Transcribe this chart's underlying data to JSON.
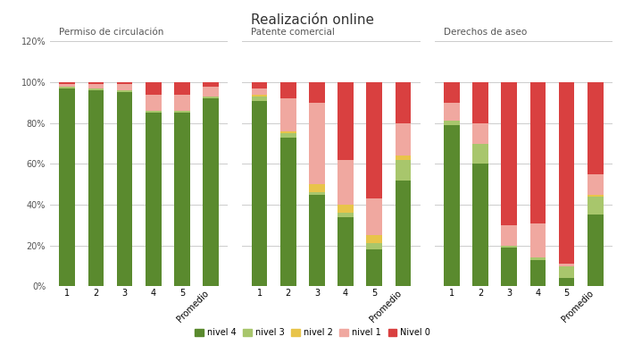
{
  "title": "Realización online",
  "groups": [
    "Permiso de circulación",
    "Patente comercial",
    "Derechos de aseo"
  ],
  "categories": [
    "1",
    "2",
    "3",
    "4",
    "5",
    "Promedio"
  ],
  "colors": {
    "nivel4": "#5a8a2e",
    "nivel3": "#a8c66c",
    "nivel2": "#e8c44a",
    "nivel1": "#f0a8a0",
    "nivel0": "#d94040"
  },
  "data": {
    "Permiso de circulación": {
      "nivel4": [
        97,
        96,
        95,
        85,
        85,
        92
      ],
      "nivel3": [
        1,
        1,
        1,
        1,
        1,
        1
      ],
      "nivel2": [
        0,
        0,
        0,
        0,
        0,
        0
      ],
      "nivel1": [
        1,
        2,
        3,
        8,
        8,
        5
      ],
      "nivel0": [
        1,
        1,
        1,
        6,
        6,
        2
      ]
    },
    "Patente comercial": {
      "nivel4": [
        91,
        73,
        45,
        34,
        18,
        52
      ],
      "nivel3": [
        2,
        2,
        1,
        2,
        3,
        10
      ],
      "nivel2": [
        1,
        1,
        4,
        4,
        4,
        2
      ],
      "nivel1": [
        3,
        16,
        40,
        22,
        18,
        16
      ],
      "nivel0": [
        3,
        8,
        10,
        38,
        57,
        20
      ]
    },
    "Derechos de aseo": {
      "nivel4": [
        79,
        60,
        19,
        13,
        4,
        35
      ],
      "nivel3": [
        2,
        10,
        1,
        1,
        6,
        9
      ],
      "nivel2": [
        0,
        0,
        0,
        0,
        0,
        1
      ],
      "nivel1": [
        9,
        10,
        10,
        17,
        1,
        10
      ],
      "nivel0": [
        10,
        20,
        70,
        69,
        89,
        45
      ]
    }
  },
  "yticks": [
    0.0,
    0.2,
    0.4,
    0.6,
    0.8,
    1.0,
    1.2
  ],
  "ytick_labels": [
    "0%",
    "20%",
    "40%",
    "60%",
    "80%",
    "100%",
    "120%"
  ],
  "background_color": "#ffffff",
  "grid_color": "#cccccc",
  "legend_labels": [
    "nivel 4",
    "nivel 3",
    "nivel 2",
    "nivel 1",
    "Nivel 0"
  ]
}
